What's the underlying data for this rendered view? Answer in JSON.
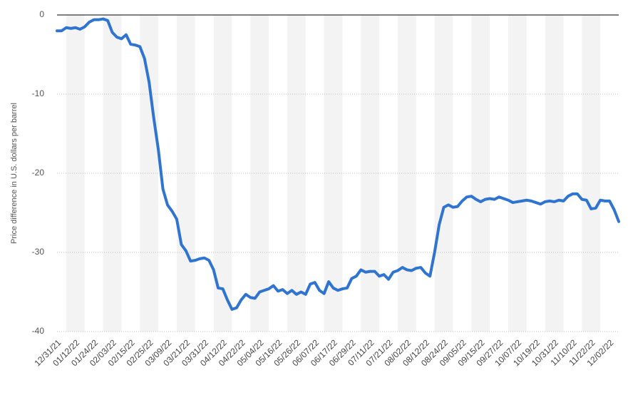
{
  "chart_data": {
    "type": "line",
    "y_label": "Price difference in U.S. dollars per barrel",
    "categories": [
      "12/31/21",
      null,
      null,
      null,
      "01/12/22",
      null,
      null,
      null,
      "01/24/22",
      null,
      null,
      null,
      "02/03/22",
      null,
      null,
      null,
      "02/15/22",
      null,
      null,
      null,
      "02/25/22",
      null,
      null,
      null,
      "03/09/22",
      null,
      null,
      null,
      "03/21/22",
      null,
      null,
      null,
      "03/31/22",
      null,
      null,
      null,
      "04/12/22",
      null,
      null,
      null,
      "04/22/22",
      null,
      null,
      null,
      "05/04/22",
      null,
      null,
      null,
      "05/16/22",
      null,
      null,
      null,
      "05/26/22",
      null,
      null,
      null,
      "06/07/22",
      null,
      null,
      null,
      "06/17/22",
      null,
      null,
      null,
      "06/29/22",
      null,
      null,
      null,
      "07/11/22",
      null,
      null,
      null,
      "07/21/22",
      null,
      null,
      null,
      "08/02/22",
      null,
      null,
      null,
      "08/12/22",
      null,
      null,
      null,
      "08/24/22",
      null,
      null,
      null,
      "09/05/22",
      null,
      null,
      null,
      "09/15/22",
      null,
      null,
      null,
      "09/27/22",
      null,
      null,
      null,
      "10/07/22",
      null,
      null,
      null,
      "10/19/22",
      null,
      null,
      null,
      "10/31/22",
      null,
      null,
      null,
      "11/10/22",
      null,
      null,
      null,
      "11/22/22",
      null,
      null,
      null,
      "12/02/22",
      null,
      null
    ],
    "values": [
      -2.0,
      -2.0,
      -1.6,
      -1.7,
      -1.6,
      -1.8,
      -1.5,
      -0.9,
      -0.6,
      -0.6,
      -0.5,
      -0.7,
      -2.2,
      -2.8,
      -3.0,
      -2.5,
      -3.7,
      -3.8,
      -4.0,
      -5.5,
      -8.5,
      -13.0,
      -17.0,
      -22.0,
      -24.0,
      -24.8,
      -25.8,
      -29.0,
      -29.8,
      -31.1,
      -31.0,
      -30.8,
      -30.7,
      -31.0,
      -32.2,
      -34.5,
      -34.6,
      -36.0,
      -37.2,
      -37.0,
      -36.0,
      -35.3,
      -35.7,
      -35.8,
      -35.0,
      -34.8,
      -34.6,
      -34.2,
      -34.9,
      -34.7,
      -35.2,
      -34.8,
      -35.3,
      -35.0,
      -35.3,
      -34.0,
      -33.8,
      -34.8,
      -35.2,
      -33.7,
      -34.5,
      -34.8,
      -34.6,
      -34.5,
      -33.3,
      -33.0,
      -32.2,
      -32.5,
      -32.4,
      -32.4,
      -33.0,
      -32.8,
      -33.4,
      -32.5,
      -32.3,
      -31.9,
      -32.2,
      -32.3,
      -32.0,
      -31.9,
      -32.6,
      -33.0,
      -30.0,
      -26.5,
      -24.3,
      -24.0,
      -24.3,
      -24.2,
      -23.5,
      -23.0,
      -22.9,
      -23.3,
      -23.6,
      -23.3,
      -23.2,
      -23.3,
      -23.0,
      -23.2,
      -23.4,
      -23.7,
      -23.6,
      -23.5,
      -23.4,
      -23.5,
      -23.7,
      -23.9,
      -23.6,
      -23.5,
      -23.6,
      -23.4,
      -23.5,
      -22.9,
      -22.6,
      -22.6,
      -23.3,
      -23.4,
      -24.5,
      -24.4,
      -23.4,
      -23.5,
      -23.5,
      -24.6,
      -26.1
    ],
    "color": "#2f74d0",
    "ylim": [
      -40,
      0
    ],
    "yticks": [
      -40,
      -30,
      -20,
      -10,
      0
    ],
    "grid": true
  }
}
